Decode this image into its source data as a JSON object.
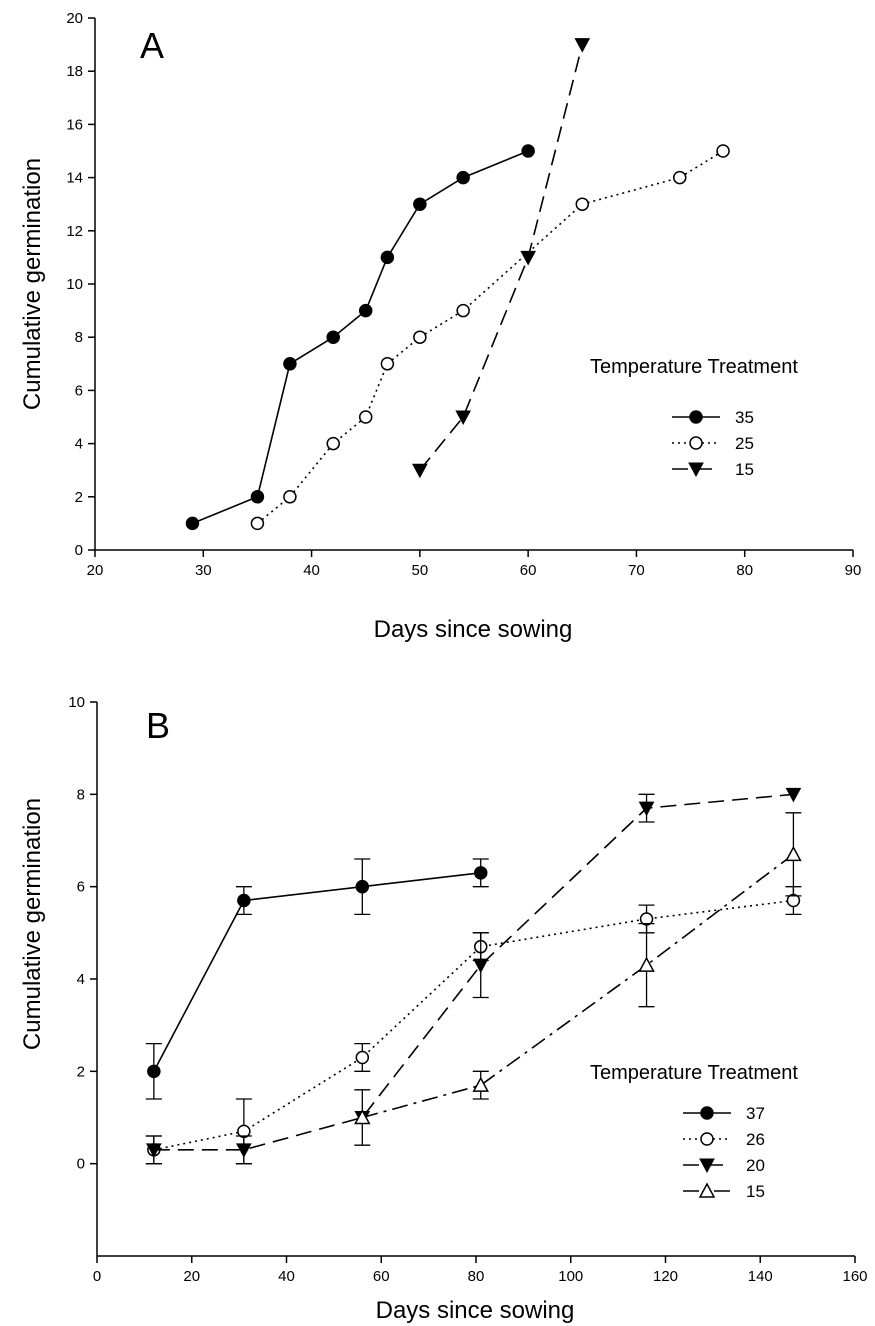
{
  "chart_data": [
    {
      "type": "line",
      "panel_label": "A",
      "xlabel": "Days since sowing",
      "ylabel": "Cumulative germination",
      "xlim": [
        20,
        90
      ],
      "ylim": [
        0,
        20
      ],
      "xticks": [
        20,
        30,
        40,
        50,
        60,
        70,
        80,
        90
      ],
      "yticks": [
        0,
        2,
        4,
        6,
        8,
        10,
        12,
        14,
        16,
        18,
        20
      ],
      "legend_title": "Temperature Treatment",
      "legend_position": "right",
      "grid": false,
      "series": [
        {
          "name": "35",
          "marker": "filled-circle",
          "line": "solid",
          "x": [
            29,
            35,
            38,
            42,
            45,
            47,
            50,
            54,
            60
          ],
          "y": [
            1,
            2,
            7,
            8,
            9,
            11,
            13,
            14,
            15
          ]
        },
        {
          "name": "25",
          "marker": "open-circle",
          "line": "dotted",
          "x": [
            35,
            38,
            42,
            45,
            47,
            50,
            54,
            65,
            74,
            78
          ],
          "y": [
            1,
            2,
            4,
            5,
            7,
            8,
            9,
            13,
            14,
            15
          ]
        },
        {
          "name": "15",
          "marker": "filled-triangle-down",
          "line": "dashed",
          "x": [
            50,
            54,
            60,
            65
          ],
          "y": [
            3,
            5,
            11,
            19
          ]
        }
      ]
    },
    {
      "type": "line",
      "panel_label": "B",
      "xlabel": "Days since sowing",
      "ylabel": "Cumulative germination",
      "xlim": [
        0,
        160
      ],
      "ylim": [
        -2,
        10
      ],
      "xticks": [
        0,
        20,
        40,
        60,
        80,
        100,
        120,
        140,
        160
      ],
      "yticks": [
        0,
        2,
        4,
        6,
        8,
        10
      ],
      "legend_title": "Temperature Treatment",
      "legend_position": "bottom-right",
      "grid": false,
      "series": [
        {
          "name": "37",
          "marker": "filled-circle",
          "line": "solid",
          "x": [
            12,
            31,
            56,
            81
          ],
          "y": [
            2.0,
            5.7,
            6.0,
            6.3
          ],
          "err": [
            0.6,
            0.3,
            0.6,
            0.3
          ]
        },
        {
          "name": "26",
          "marker": "open-circle",
          "line": "dotted",
          "x": [
            12,
            31,
            56,
            81,
            116,
            147
          ],
          "y": [
            0.3,
            0.7,
            2.3,
            4.7,
            5.3,
            5.7
          ],
          "err": [
            0.3,
            0.7,
            0.3,
            0.3,
            0.3,
            0.3
          ]
        },
        {
          "name": "20",
          "marker": "filled-triangle-down",
          "line": "dashed",
          "x": [
            12,
            31,
            56,
            81,
            116,
            147
          ],
          "y": [
            0.3,
            0.3,
            1.0,
            4.3,
            7.7,
            8.0
          ],
          "err": [
            0.3,
            0.3,
            0.6,
            0.7,
            0.3,
            0
          ]
        },
        {
          "name": "15",
          "marker": "open-triangle-up",
          "line": "dash-dot",
          "x": [
            56,
            81,
            116,
            147
          ],
          "y": [
            1.0,
            1.7,
            4.3,
            6.7
          ],
          "err": [
            0,
            0.3,
            0.9,
            0.9
          ]
        }
      ]
    }
  ]
}
